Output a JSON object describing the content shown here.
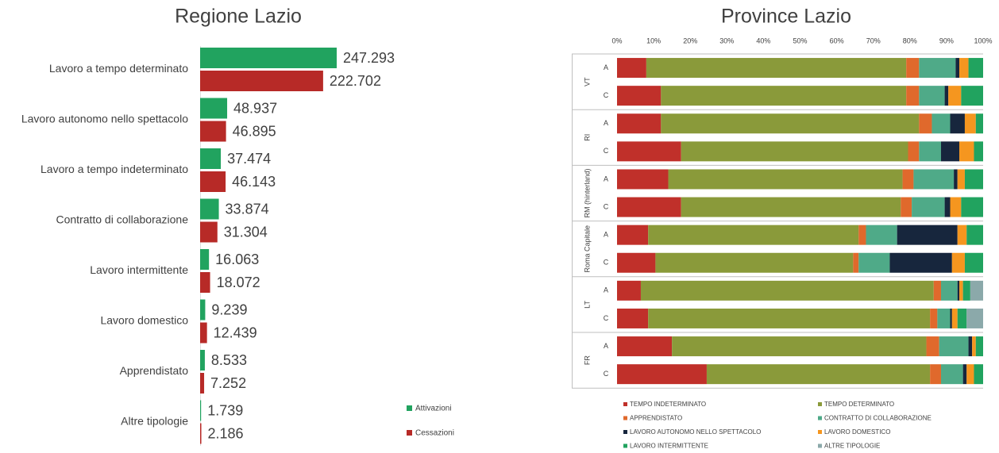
{
  "chart_data": [
    {
      "type": "bar",
      "orientation": "horizontal",
      "title": "Regione Lazio",
      "categories": [
        "Lavoro a tempo determinato",
        "Lavoro autonomo nello spettacolo",
        "Lavoro a tempo indeterminato",
        "Contratto di collaborazione",
        "Lavoro intermittente",
        "Lavoro domestico",
        "Apprendistato",
        "Altre tipologie"
      ],
      "series": [
        {
          "name": "Attivazioni",
          "color": "#21a35f",
          "values": [
            247293,
            48937,
            37474,
            33874,
            16063,
            9239,
            8533,
            1739
          ],
          "value_labels": [
            "247.293",
            "48.937",
            "37.474",
            "33.874",
            "16.063",
            "9.239",
            "8.533",
            "1.739"
          ]
        },
        {
          "name": "Cessazioni",
          "color": "#b72a27",
          "values": [
            222702,
            46895,
            46143,
            31304,
            18072,
            12439,
            7252,
            2186
          ],
          "value_labels": [
            "222.702",
            "46.895",
            "46.143",
            "31.304",
            "18.072",
            "12.439",
            "7.252",
            "2.186"
          ]
        }
      ]
    },
    {
      "type": "bar",
      "orientation": "horizontal",
      "stacked": true,
      "title": "Province Lazio",
      "groups": [
        "VT",
        "RI",
        "RM (hinterland)",
        "Roma Capitale",
        "LT",
        "FR"
      ],
      "categories": [
        "A",
        "C",
        "A",
        "C",
        "A",
        "C",
        "A",
        "C",
        "A",
        "C",
        "A",
        "C"
      ],
      "xlim": [
        0,
        100
      ],
      "xticks": [
        {
          "value": 0,
          "label": "0%"
        },
        {
          "value": 10,
          "label": "10%"
        },
        {
          "value": 20,
          "label": "20%"
        },
        {
          "value": 30,
          "label": "30%"
        },
        {
          "value": 40,
          "label": "40%"
        },
        {
          "value": 50,
          "label": "50%"
        },
        {
          "value": 60,
          "label": "60%"
        },
        {
          "value": 70,
          "label": "70%"
        },
        {
          "value": 80,
          "label": "80%"
        },
        {
          "value": 90,
          "label": "90%"
        },
        {
          "value": 100,
          "label": "100%"
        }
      ],
      "series": [
        {
          "name": "TEMPO INDETERMINATO",
          "color": "#c0302a",
          "values": [
            8,
            12,
            12,
            17.5,
            14,
            17.5,
            8.5,
            10.5,
            6.5,
            8.5,
            15,
            24.5
          ]
        },
        {
          "name": "TEMPO DETERMINATO",
          "color": "#8a9a3a",
          "values": [
            71,
            67,
            70.5,
            62,
            64,
            60,
            57.5,
            54,
            80,
            77,
            69.5,
            61
          ]
        },
        {
          "name": "APPRENDISTATO",
          "color": "#e0692c",
          "values": [
            3.5,
            3.5,
            3.5,
            3,
            3,
            3,
            2,
            1.5,
            2,
            2,
            3.5,
            3
          ]
        },
        {
          "name": "CONTRATTO DI COLLABORAZIONE",
          "color": "#4faa88",
          "values": [
            10,
            7,
            5,
            6,
            11,
            9,
            8.5,
            8.5,
            4.5,
            3.5,
            8,
            6
          ]
        },
        {
          "name": "LAVORO AUTONOMO NELLO SPETTACOLO",
          "color": "#17263d",
          "values": [
            1,
            1,
            4,
            5,
            1,
            1.5,
            16.5,
            17,
            0.5,
            0.5,
            1,
            1
          ]
        },
        {
          "name": "LAVORO DOMESTICO",
          "color": "#f5961f",
          "values": [
            2.5,
            3.5,
            3,
            4,
            2,
            3,
            2.5,
            3.5,
            1,
            1.5,
            1,
            2
          ]
        },
        {
          "name": "LAVORO INTERMITTENTE",
          "color": "#21a35f",
          "values": [
            4,
            6,
            2,
            2.5,
            5,
            6,
            4.5,
            5,
            2,
            2.5,
            2,
            2.5
          ]
        },
        {
          "name": "ALTRE TIPOLOGIE",
          "color": "#8ba9aa",
          "values": [
            0,
            0,
            0,
            0,
            0,
            0,
            0,
            0,
            3.5,
            4.5,
            0,
            0
          ]
        }
      ]
    }
  ]
}
